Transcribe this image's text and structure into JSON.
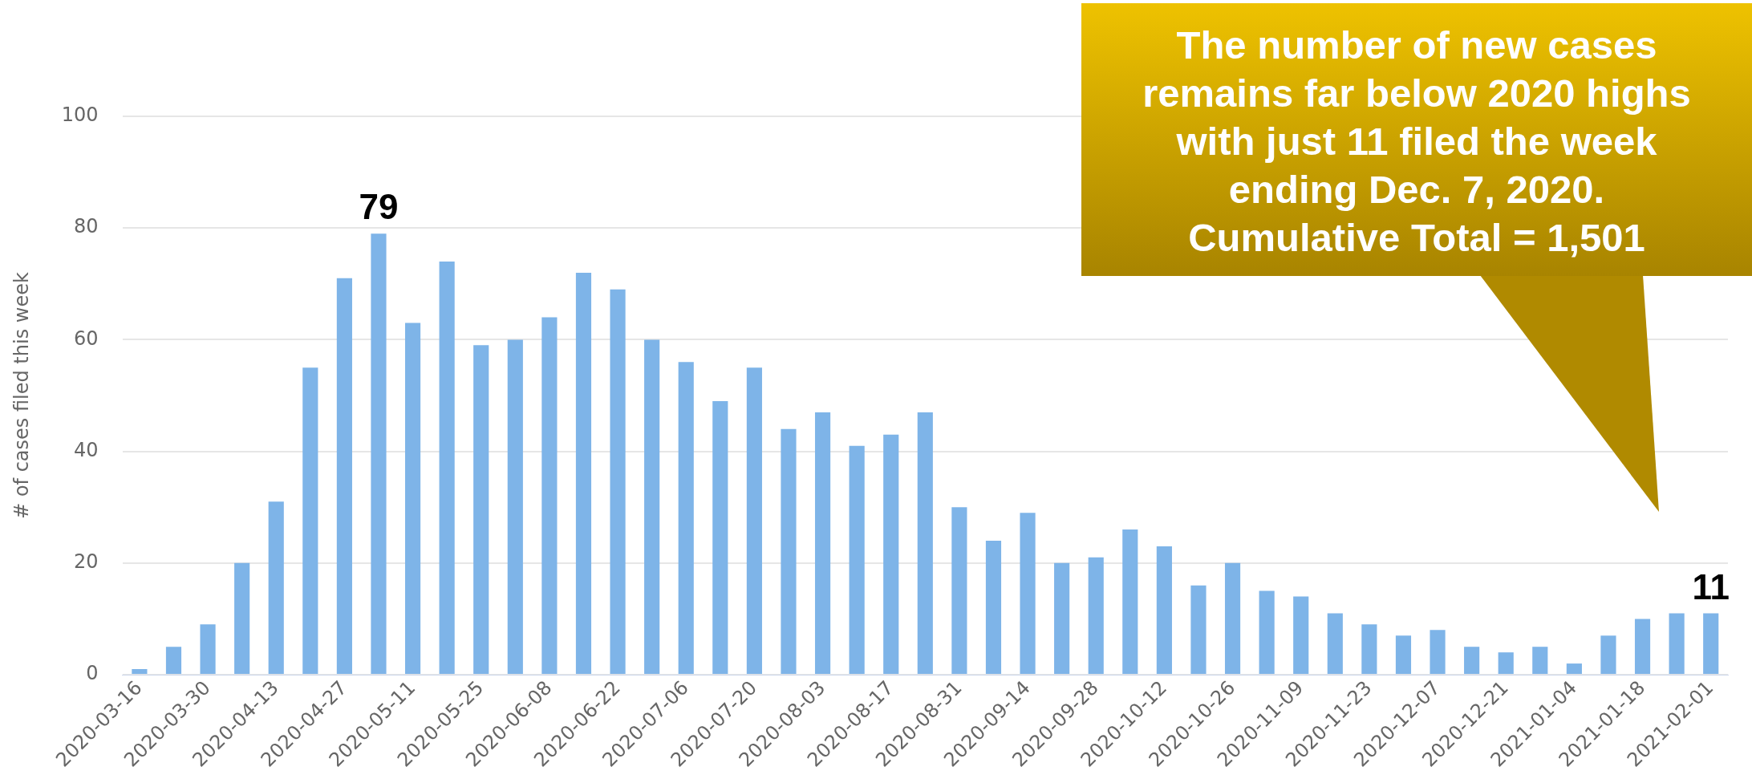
{
  "chart_data": {
    "type": "bar",
    "ylabel": "# of cases filed this week",
    "categories": [
      "2020-03-16",
      null,
      "2020-03-30",
      null,
      "2020-04-13",
      null,
      "2020-04-27",
      null,
      "2020-05-11",
      null,
      "2020-05-25",
      null,
      "2020-06-08",
      null,
      "2020-06-22",
      null,
      "2020-07-06",
      null,
      "2020-07-20",
      null,
      "2020-08-03",
      null,
      "2020-08-17",
      null,
      "2020-08-31",
      null,
      "2020-09-14",
      null,
      "2020-09-28",
      null,
      "2020-10-12",
      null,
      "2020-10-26",
      null,
      "2020-11-09",
      null,
      "2020-11-23",
      null,
      "2020-12-07",
      null,
      "2020-12-21",
      null,
      "2021-01-04",
      null,
      "2021-01-18",
      null,
      "2021-02-01"
    ],
    "values": [
      1,
      5,
      9,
      20,
      31,
      55,
      71,
      79,
      63,
      74,
      59,
      60,
      64,
      72,
      69,
      60,
      56,
      49,
      55,
      44,
      47,
      41,
      43,
      47,
      30,
      24,
      29,
      20,
      21,
      26,
      23,
      16,
      20,
      15,
      14,
      11,
      9,
      7,
      8,
      5,
      4,
      5,
      2,
      7,
      10,
      11,
      11
    ],
    "value_labels": [
      null,
      null,
      null,
      null,
      null,
      null,
      null,
      "79",
      null,
      null,
      null,
      null,
      null,
      null,
      null,
      null,
      null,
      null,
      null,
      null,
      null,
      null,
      null,
      null,
      null,
      null,
      null,
      null,
      null,
      null,
      null,
      null,
      null,
      null,
      null,
      null,
      null,
      null,
      null,
      null,
      null,
      null,
      null,
      null,
      null,
      null,
      "11"
    ],
    "color": "#7eb4e8",
    "ylim": [
      0,
      100
    ],
    "yticks": [
      0,
      20,
      40,
      60,
      80,
      100
    ],
    "grid": "y",
    "legend": false,
    "annotations": [
      "The number of new cases remains far below 2020 highs with just 11 filed the week ending Dec. 7, 2020. Cumulative Total = 1,501"
    ]
  }
}
